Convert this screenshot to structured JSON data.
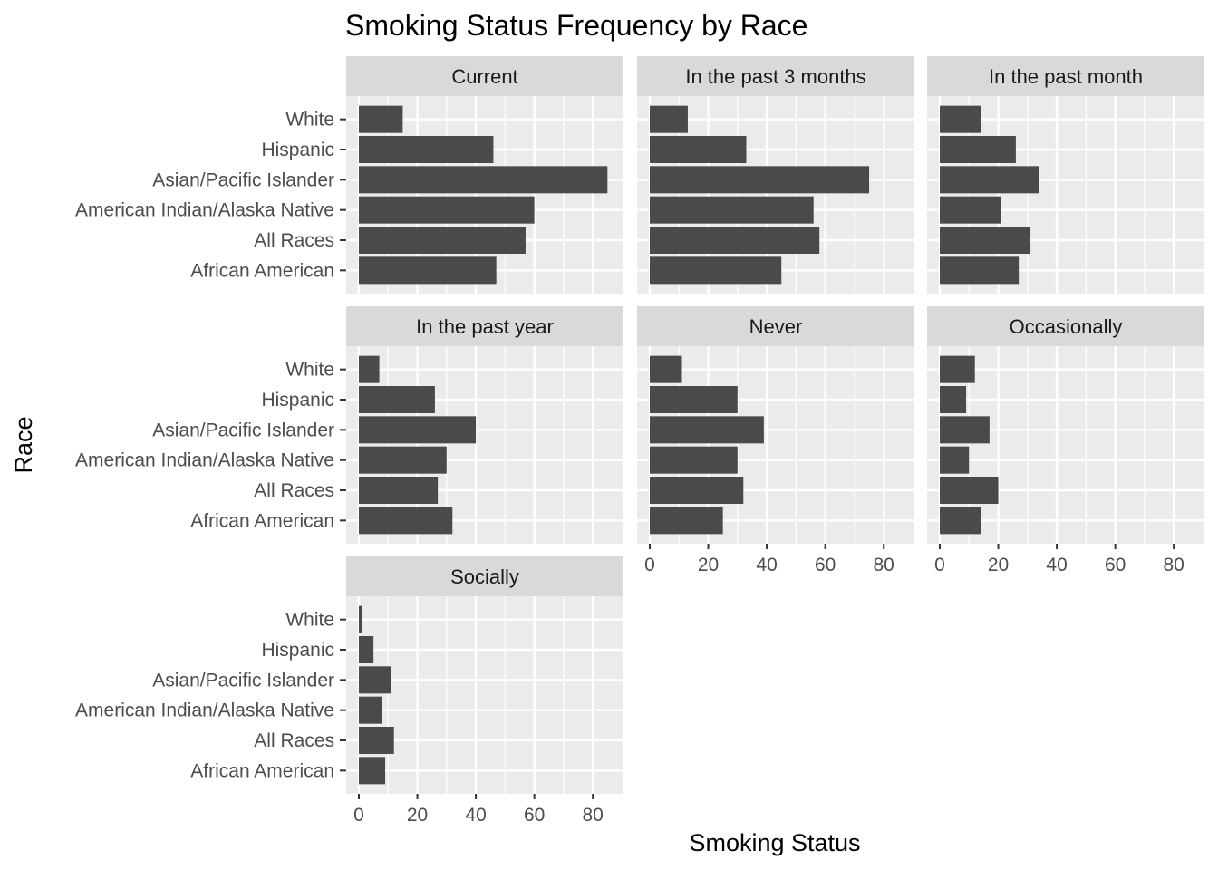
{
  "chart_data": {
    "type": "bar",
    "orientation": "horizontal",
    "title": "Smoking Status Frequency by Race",
    "xlabel": "Smoking Status",
    "ylabel": "Race",
    "xlim": [
      0,
      88
    ],
    "x_ticks": [
      0,
      20,
      40,
      60,
      80
    ],
    "grid": true,
    "categories": [
      "African American",
      "All Races",
      "American Indian/Alaska Native",
      "Asian/Pacific Islander",
      "Hispanic",
      "White"
    ],
    "panels": [
      {
        "name": "Current",
        "values": [
          47,
          57,
          60,
          85,
          46,
          15
        ]
      },
      {
        "name": "In the past 3 months",
        "values": [
          45,
          58,
          56,
          75,
          33,
          13
        ]
      },
      {
        "name": "In the past month",
        "values": [
          27,
          31,
          21,
          34,
          26,
          14
        ]
      },
      {
        "name": "In the past year",
        "values": [
          32,
          27,
          30,
          40,
          26,
          7
        ]
      },
      {
        "name": "Never",
        "values": [
          25,
          32,
          30,
          39,
          30,
          11
        ]
      },
      {
        "name": "Occasionally",
        "values": [
          14,
          20,
          10,
          17,
          9,
          12
        ]
      },
      {
        "name": "Socially",
        "values": [
          9,
          12,
          8,
          11,
          5,
          1
        ]
      }
    ]
  },
  "colors": {
    "panel_background": "#ebebeb",
    "grid": "#ffffff",
    "bar": "#4a4a4a",
    "strip": "#d9d9d9",
    "tick_text": "#4d4d4d"
  }
}
